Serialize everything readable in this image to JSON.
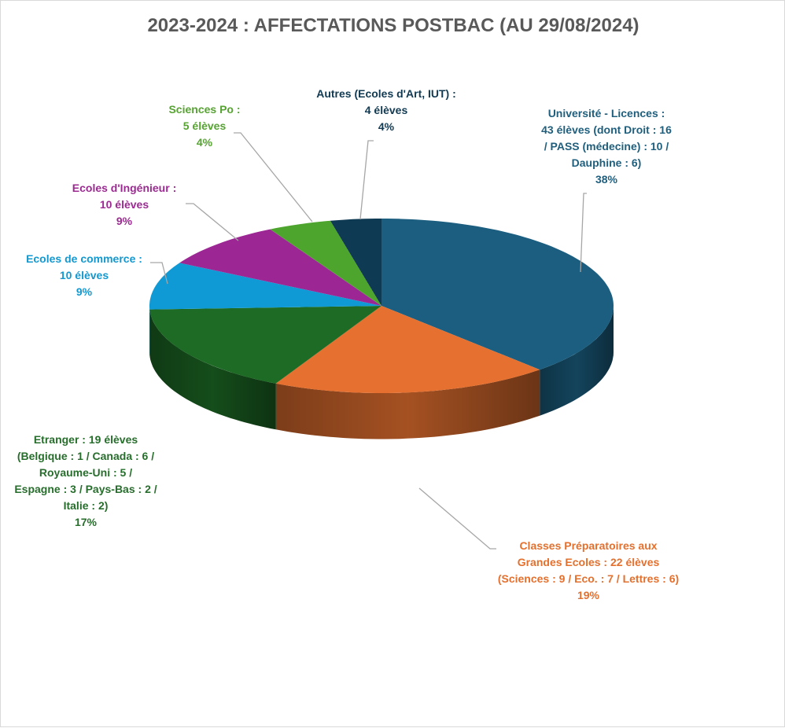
{
  "chart_data": {
    "type": "pie",
    "title": "2023-2024  : AFFECTATIONS POSTBAC (AU 29/08/2024)",
    "slices": [
      {
        "category": "Université - Licences",
        "value": 43,
        "percent": "38%",
        "color": "#1b5e80",
        "label_lines": [
          "Université - Licences :",
          "43 élèves (dont Droit : 16",
          "/ PASS (médecine) : 10 /",
          "Dauphine : 6)",
          "38%"
        ],
        "label_color": "#1f5f7d"
      },
      {
        "category": "Classes Préparatoires aux Grandes Ecoles",
        "value": 22,
        "percent": "19%",
        "color": "#e5702f",
        "label_lines": [
          "Classes Préparatoires aux",
          "Grandes Ecoles : 22 élèves",
          "(Sciences : 9 / Eco. : 7 / Lettres : 6)",
          "19%"
        ],
        "label_color": "#e4702e"
      },
      {
        "category": "Etranger",
        "value": 19,
        "percent": "17%",
        "color": "#1d6b25",
        "label_lines": [
          "Etranger : 19 élèves",
          "(Belgique : 1 / Canada : 6 /",
          "Royaume-Uni : 5 /",
          "Espagne : 3 / Pays-Bas : 2 /",
          "Italie : 2)",
          "17%"
        ],
        "label_color": "#276e2c"
      },
      {
        "category": "Ecoles de commerce",
        "value": 10,
        "percent": "9%",
        "color": "#0f9ad6",
        "label_lines": [
          "Ecoles de commerce :",
          "10 élèves",
          "9%"
        ],
        "label_color": "#1398cf"
      },
      {
        "category": "Ecoles d'Ingénieur",
        "value": 10,
        "percent": "9%",
        "color": "#9b2694",
        "label_lines": [
          "Ecoles d'Ingénieur :",
          "10 élèves",
          "9%"
        ],
        "label_color": "#9c2a92"
      },
      {
        "category": "Sciences Po",
        "value": 5,
        "percent": "4%",
        "color": "#4ea52e",
        "label_lines": [
          "Sciences Po :",
          "5 élèves",
          "4%"
        ],
        "label_color": "#56a332"
      },
      {
        "category": "Autres (Ecoles d'Art, IUT)",
        "value": 4,
        "percent": "4%",
        "color": "#0f3a54",
        "label_lines": [
          "Autres (Ecoles d'Art, IUT) :",
          "4 élèves",
          "4%"
        ],
        "label_color": "#113a52"
      }
    ],
    "start": "12 o'clock",
    "direction": "clockwise",
    "style": "3D"
  }
}
